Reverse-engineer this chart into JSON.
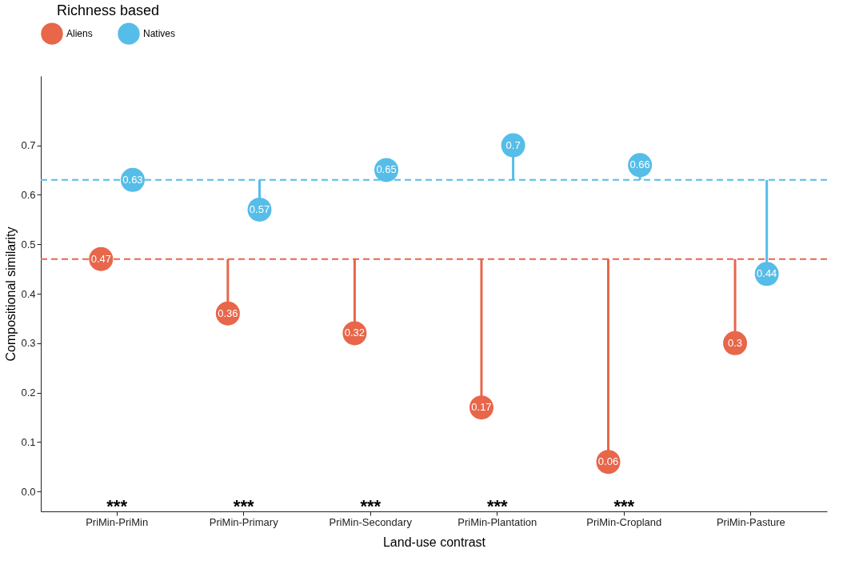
{
  "chart_data": {
    "type": "lollipop",
    "xlabel": "Land-use contrast",
    "ylabel": "Compositional similarity",
    "legend_title": "Richness based",
    "legend": "top",
    "categories": [
      "PriMin-PriMin",
      "PriMin-Primary",
      "PriMin-Secondary",
      "PriMin-Plantation",
      "PriMin-Cropland",
      "PriMin-Pasture"
    ],
    "series": [
      {
        "name": "Aliens",
        "color": "#e8664a",
        "values": [
          0.47,
          0.36,
          0.32,
          0.17,
          0.06,
          0.3
        ]
      },
      {
        "name": "Natives",
        "color": "#56bde8",
        "values": [
          0.63,
          0.57,
          0.65,
          0.7,
          0.66,
          0.44
        ]
      }
    ],
    "ylim": [
      -0.04,
      0.84
    ],
    "yticks": [
      {
        "value": 0,
        "label": "0.0"
      },
      0.1,
      0.2,
      0.3,
      0.4,
      0.5,
      0.6,
      0.7
    ],
    "ref_lines": [
      {
        "axis": "y",
        "value": 0.47,
        "color": "#e8664a",
        "line_style": "dashed"
      },
      {
        "axis": "y",
        "value": 0.63,
        "color": "#56bde8",
        "line_style": "dashed"
      }
    ],
    "annotations": [
      "***",
      "***",
      "***",
      "***",
      "***"
    ],
    "data_labels": true,
    "marker": "circle",
    "grid": false
  }
}
